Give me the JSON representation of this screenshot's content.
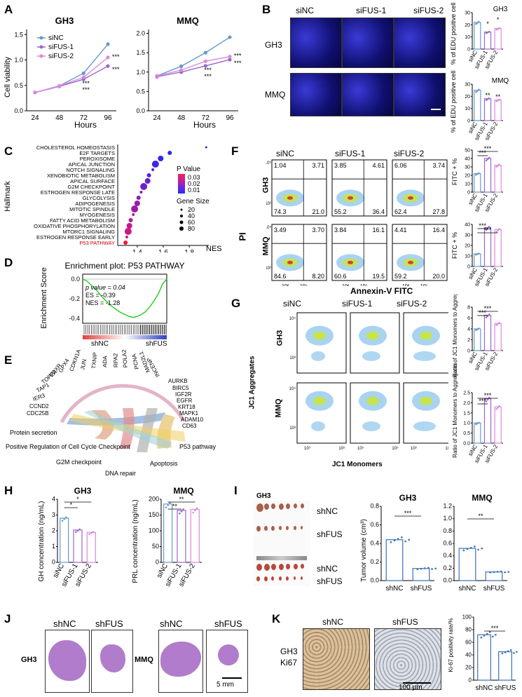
{
  "panels": {
    "A": "A",
    "B": "B",
    "C": "C",
    "D": "D",
    "E": "E",
    "F": "F",
    "G": "G",
    "H": "H",
    "I": "I",
    "J": "J",
    "K": "K"
  },
  "panelA": {
    "charts": [
      {
        "title": "GH3"
      },
      {
        "title": "MMQ"
      }
    ],
    "ylabel": "Cell viability",
    "xlabel": "Hours",
    "xticks": [
      "24",
      "48",
      "72",
      "96"
    ],
    "yticksGH3": [
      "0.0",
      "0.5",
      "1.0",
      "1.5"
    ],
    "yticksMMQ": [
      "0.0",
      "0.5",
      "1.0",
      "1.5",
      "2.0"
    ],
    "legend": [
      "siNC",
      "siFUS-1",
      "siFUS-2"
    ],
    "sig": "***"
  },
  "chart_data": [
    {
      "type": "line",
      "title": "GH3",
      "xlabel": "Hours",
      "ylabel": "Cell viability",
      "x": [
        24,
        48,
        72,
        96
      ],
      "ylim": [
        0,
        1.6
      ],
      "series": [
        {
          "name": "siNC",
          "values": [
            0.36,
            0.49,
            0.74,
            1.31
          ]
        },
        {
          "name": "siFUS-1",
          "values": [
            0.36,
            0.48,
            0.62,
            0.88
          ]
        },
        {
          "name": "siFUS-2",
          "values": [
            0.36,
            0.49,
            0.66,
            1.05
          ]
        }
      ]
    },
    {
      "type": "line",
      "title": "MMQ",
      "xlabel": "Hours",
      "ylabel": "Cell viability",
      "x": [
        24,
        48,
        72,
        96
      ],
      "ylim": [
        0,
        2.1
      ],
      "series": [
        {
          "name": "siNC",
          "values": [
            0.9,
            1.15,
            1.5,
            1.9
          ]
        },
        {
          "name": "siFUS-1",
          "values": [
            0.88,
            1.0,
            1.16,
            1.32
          ]
        },
        {
          "name": "siFUS-2",
          "values": [
            0.9,
            1.05,
            1.28,
            1.4
          ]
        }
      ]
    },
    {
      "type": "bar",
      "title": "GH3",
      "ylabel": "% of EDU positive cell",
      "categories": [
        "siNC",
        "siFUS-1",
        "siFUS-2"
      ],
      "values": [
        22,
        14,
        17
      ],
      "ylim": [
        0,
        30
      ]
    },
    {
      "type": "bar",
      "title": "MMQ",
      "ylabel": "% of EDU positive cell",
      "categories": [
        "siNC",
        "siFUS-1",
        "siFUS-2"
      ],
      "values": [
        25,
        18,
        17
      ],
      "ylim": [
        0,
        30
      ]
    },
    {
      "type": "scatter",
      "title": "Hallmark",
      "xlabel": "NES",
      "ylabel": "Hallmark",
      "categories": [
        "CHOLESTEROL HOMEOSTASIS",
        "E2F TARGETS",
        "PEROXISOME",
        "APICAL JUNCTION",
        "NOTCH SIGNALING",
        "XENOBIOTIC METABOLISM",
        "APICAL SURFACE",
        "G2M CHECKPOINT",
        "ESTROGEN RESPONSE LATE",
        "GLYCOLYSIS",
        "ADIPOGENESIS",
        "MITOTIC SPINDLE",
        "MYOGENESIS",
        "FATTY ACID METABOLISM",
        "OXIDATIVE PHOSPHORYLATION",
        "MTORC1 SIGNALING",
        "ESTROGEN RESPONSE EARLY",
        "P53 PATHWAY"
      ],
      "values": [
        1.93,
        1.65,
        1.58,
        1.54,
        1.52,
        1.49,
        1.48,
        1.45,
        1.43,
        1.41,
        1.4,
        1.38,
        1.37,
        1.35,
        1.34,
        1.33,
        1.32,
        1.31
      ]
    },
    {
      "type": "bar",
      "title": "GH3",
      "ylabel": "FITC + %",
      "categories": [
        "siNC",
        "siFUS-1",
        "siFUS-2"
      ],
      "values": [
        22,
        40,
        32
      ],
      "ylim": [
        0,
        50
      ]
    },
    {
      "type": "bar",
      "title": "MMQ",
      "ylabel": "FITC + %",
      "categories": [
        "siNC",
        "siFUS-1",
        "siFUS-2"
      ],
      "values": [
        12,
        37,
        35
      ],
      "ylim": [
        0,
        40
      ]
    },
    {
      "type": "bar",
      "title": "GH3",
      "ylabel": "Ratio of JC1 Monomers to Aggregates",
      "categories": [
        "siNC",
        "siFUS-1",
        "siFUS-2"
      ],
      "values": [
        4,
        6.5,
        5
      ],
      "ylim": [
        0,
        8
      ]
    },
    {
      "type": "bar",
      "title": "MMQ",
      "ylabel": "Ratio of JC1 Monomers to Aggregates",
      "categories": [
        "siNC",
        "siFUS-1",
        "siFUS-2"
      ],
      "values": [
        1,
        2.2,
        1.8
      ],
      "ylim": [
        0,
        2.5
      ]
    },
    {
      "type": "bar",
      "title": "GH3",
      "ylabel": "GH concentration (ng/mL)",
      "categories": [
        "siNC",
        "siFUS-1",
        "siFUS-2"
      ],
      "values": [
        2.8,
        2.05,
        1.9
      ],
      "ylim": [
        0,
        4
      ]
    },
    {
      "type": "bar",
      "title": "MMQ",
      "ylabel": "PRL concentration (ng/mL)",
      "categories": [
        "siNC",
        "siFUS-1",
        "siFUS-2"
      ],
      "values": [
        185,
        165,
        168
      ],
      "ylim": [
        0,
        200
      ]
    },
    {
      "type": "bar",
      "title": "GH3",
      "ylabel": "Tumor volume (cm³)",
      "categories": [
        "shNC",
        "shFUS"
      ],
      "values": [
        0.44,
        0.13
      ],
      "ylim": [
        0,
        0.8
      ]
    },
    {
      "type": "bar",
      "title": "MMQ",
      "ylabel": "",
      "categories": [
        "shNC",
        "shFUS"
      ],
      "values": [
        0.52,
        0.14
      ],
      "ylim": [
        0,
        1.2
      ]
    },
    {
      "type": "bar",
      "title": "Ki67",
      "ylabel": "Ki-67 positivity rate/%",
      "categories": [
        "shNC",
        "shFUS"
      ],
      "values": [
        72,
        45
      ],
      "ylim": [
        0,
        100
      ]
    }
  ],
  "panelB": {
    "cols": [
      "siNC",
      "siFUS-1",
      "siFUS-2"
    ],
    "rows": [
      "GH3",
      "MMQ"
    ],
    "ylabel": "% of EDU positive cell",
    "yticks": [
      "0",
      "10",
      "20",
      "30"
    ],
    "cats": [
      "siNC",
      "siFUS-1",
      "siFUS-2"
    ],
    "titleGH3": "GH3",
    "titleMMQ": "MMQ",
    "sig1": "*",
    "sig2": "*",
    "sig3": "**",
    "sig4": "**"
  },
  "panelC": {
    "ylabel": "Hallmark",
    "xlabel": "NES",
    "xticks": [
      "1.4",
      "1.6",
      "1.8"
    ],
    "pvalue": {
      "title": "P Value",
      "ticks": [
        "0.03",
        "0.02",
        "0.01"
      ]
    },
    "size": {
      "title": "Gene Size",
      "items": [
        "20",
        "40",
        "60",
        "80"
      ]
    },
    "highlight": "#cc0000"
  },
  "panelD": {
    "title": "Enrichment plot: P53 PATHWAY",
    "ylabel": "Enrichment Score",
    "yticks": [
      "0.0",
      "-0.2",
      "-0.4"
    ],
    "stats": [
      "p value = 0.04",
      "ES = -0.39",
      "NES = -1.28"
    ],
    "left": "shNC",
    "right": "shFUS",
    "es": [
      0,
      -0.02,
      -0.06,
      -0.1,
      -0.15,
      -0.2,
      -0.24,
      -0.28,
      -0.31,
      -0.34,
      -0.36,
      -0.38,
      -0.39,
      -0.38,
      -0.36,
      -0.33,
      -0.28,
      -0.22,
      -0.15,
      -0.05,
      0.0
    ]
  },
  "panelE": {
    "genes": [
      "CDC25B",
      "CCND2",
      "IER3",
      "TAP1",
      "TOP2A",
      "FDXR",
      "GPX4",
      "CDKN1A",
      "JUN",
      "TXNIP",
      "ADA",
      "RPA2",
      "POLA2",
      "PCNA",
      "MAD2L1",
      "INCENP",
      "AURKB",
      "BIRC5",
      "IGF2R",
      "EGFR",
      "KRT18",
      "MAPK1",
      "ADAM10",
      "CD63"
    ],
    "terms": [
      "Protein secretion",
      "Positive Regulation of Cell Cycle Checkpoint",
      "G2M checkpoint",
      "DNA repair",
      "Apoptosis",
      "P53 pathway"
    ]
  },
  "panelF": {
    "cols": [
      "siNC",
      "siFUS-1",
      "siFUS-2"
    ],
    "rows": [
      "GH3",
      "MMQ"
    ],
    "yaxis": "PI",
    "xaxis": "Annexin-V FITC",
    "quadGH3": [
      [
        "1.04",
        "3.71",
        "74.3",
        "21.0"
      ],
      [
        "3.85",
        "4.61",
        "55.2",
        "36.4"
      ],
      [
        "6.06",
        "3.74",
        "62.4",
        "27.8"
      ]
    ],
    "quadMMQ": [
      [
        "3.49",
        "3.70",
        "84.6",
        "8.20"
      ],
      [
        "3.84",
        "16.1",
        "60.6",
        "19.5"
      ],
      [
        "4.41",
        "16.4",
        "59.2",
        "20.0"
      ]
    ],
    "ticks": [
      "10²",
      "10⁵"
    ],
    "yticksGH3": [
      "0",
      "10",
      "20",
      "30",
      "40",
      "50"
    ],
    "yticksMMQ": [
      "0",
      "10",
      "20",
      "30",
      "40"
    ],
    "ylabel": "FITC + %",
    "sig": "***"
  },
  "panelG": {
    "cols": [
      "siNC",
      "siFUS-1",
      "siFUS-2"
    ],
    "rows": [
      "GH3",
      "MMQ"
    ],
    "yaxis": "JC1 Aggregates",
    "xaxis": "JC1 Monomers",
    "ylabel": "Ratio of JC1 Monomers to Aggregates",
    "yticksGH3": [
      "0",
      "2",
      "4",
      "6",
      "8"
    ],
    "yticksMMQ": [
      "0.0",
      "0.5",
      "1.0",
      "1.5",
      "2.0",
      "2.5"
    ],
    "sig": "***",
    "tick1": "10⁴",
    "tick2": "10³",
    "tick3": "10⁵"
  },
  "panelH": {
    "gh3": {
      "title": "GH3",
      "ylabel": "GH concentration (ng/mL)",
      "yticks": [
        "0",
        "1",
        "2",
        "3",
        "4"
      ],
      "sig1": "*",
      "sig2": "*"
    },
    "mmq": {
      "title": "MMQ",
      "ylabel": "PRL concentration (ng/mL)",
      "yticks": [
        "0",
        "50",
        "100",
        "150",
        "200"
      ],
      "sig1": "**",
      "sig2": "**"
    },
    "cats": [
      "siNC",
      "siFUS-1",
      "siFUS-2"
    ]
  },
  "panelI": {
    "gh3": "GH3",
    "mmq": "MMQ",
    "labels": [
      "shNC",
      "shFUS",
      "shNC",
      "shFUS"
    ],
    "ylabel": "Tumor volume (cm³)",
    "yticksGH3": [
      "0.0",
      "0.2",
      "0.4",
      "0.6",
      "0.8"
    ],
    "yticksMMQ": [
      "0.0",
      "0.2",
      "0.4",
      "0.6",
      "0.8",
      "1.0",
      "1.2"
    ],
    "sigGH3": "***",
    "sigMMQ": "**",
    "cats": [
      "shNC",
      "shFUS"
    ]
  },
  "panelJ": {
    "labels": [
      "shNC",
      "shFUS",
      "shNC",
      "shFUS"
    ],
    "gh3": "GH3",
    "mmq": "MMQ",
    "scale": "5 mm"
  },
  "panelK": {
    "cols": [
      "shNC",
      "shFUS"
    ],
    "row1": "GH3",
    "row2": "Ki67",
    "scale": "100 μm",
    "ylabel": "Ki-67 positivity rate/%",
    "yticks": [
      "0",
      "20",
      "40",
      "60",
      "80",
      "100"
    ],
    "sig": "***",
    "cats": [
      "shNC",
      "shFUS"
    ]
  },
  "colors": {
    "siNC": "#6699cc",
    "siFUS1": "#9966cc",
    "siFUS2": "#dd88dd",
    "blue": "#3b6fb6"
  }
}
